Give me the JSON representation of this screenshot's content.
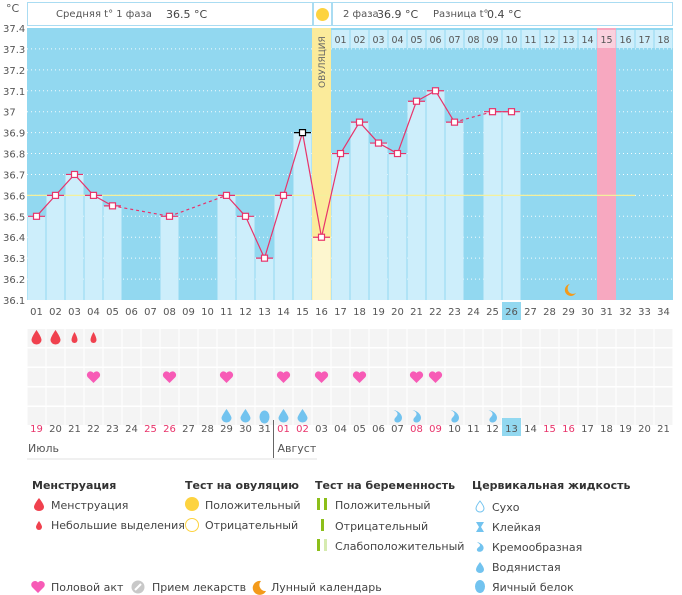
{
  "header": {
    "unit": "°C",
    "phase1_label": "Средняя t° 1 фаза",
    "phase1_value": "36.5 °C",
    "phase2_label": "2 фаза",
    "phase2_value": "36.9 °C",
    "diff_label": "Разница t°",
    "diff_value": "0.4 °C",
    "ovulation_label": "ОВУЛЯЦИЯ"
  },
  "chart_data": {
    "type": "line",
    "title": "",
    "ylabel": "°C",
    "ylim": [
      36.1,
      37.4
    ],
    "yticks": [
      "37.4",
      "37.3",
      "37.2",
      "37.1",
      "37",
      "36.9",
      "36.8",
      "36.7",
      "36.6",
      "36.5",
      "36.4",
      "36.3",
      "36.2",
      "36.1"
    ],
    "coverline": 36.6,
    "cycle_days": [
      "01",
      "02",
      "03",
      "04",
      "05",
      "06",
      "07",
      "08",
      "09",
      "10",
      "11",
      "12",
      "13",
      "14",
      "15",
      "16",
      "17",
      "18",
      "19",
      "20",
      "21",
      "22",
      "23",
      "24",
      "25",
      "26",
      "27",
      "28",
      "29",
      "30",
      "31",
      "32",
      "33",
      "34"
    ],
    "series": [
      {
        "name": "BBT",
        "values": [
          36.5,
          36.6,
          36.7,
          36.6,
          36.55,
          null,
          null,
          36.5,
          null,
          null,
          36.6,
          36.5,
          36.3,
          36.6,
          36.9,
          36.4,
          36.8,
          36.95,
          36.85,
          36.8,
          37.05,
          37.1,
          36.95,
          null,
          37.0,
          37.0,
          null,
          null,
          null,
          null,
          null,
          null,
          null,
          null
        ]
      }
    ],
    "highlighted_point_day": 15,
    "ovulation_day": 16,
    "current_day": 26,
    "next_period_day": 31,
    "moon_day": 29,
    "luteal_days": [
      "01",
      "02",
      "03",
      "04",
      "05",
      "06",
      "07",
      "08",
      "09",
      "10",
      "11",
      "12",
      "13",
      "14",
      "15",
      "16",
      "17",
      "18"
    ],
    "luteal_highlight": "15"
  },
  "calendar_dates": [
    "19",
    "20",
    "21",
    "22",
    "23",
    "24",
    "25",
    "26",
    "27",
    "28",
    "29",
    "30",
    "31",
    "01",
    "02",
    "03",
    "04",
    "05",
    "06",
    "07",
    "08",
    "09",
    "10",
    "11",
    "12",
    "13",
    "14",
    "15",
    "16",
    "17",
    "18",
    "19",
    "20",
    "21"
  ],
  "weekend_indices": [
    0,
    6,
    7,
    13,
    14,
    20,
    21,
    27,
    28
  ],
  "today_index": 25,
  "months": {
    "first": "Июль",
    "second": "Август"
  },
  "rows": {
    "menstruation": {
      "big": [
        0,
        1
      ],
      "small": [
        2,
        3
      ]
    },
    "intercourse": [
      3,
      7,
      10,
      13,
      15,
      17,
      20,
      21
    ],
    "fluid": [
      {
        "i": 10,
        "type": "watery"
      },
      {
        "i": 11,
        "type": "watery"
      },
      {
        "i": 12,
        "type": "eggwhite"
      },
      {
        "i": 13,
        "type": "watery"
      },
      {
        "i": 14,
        "type": "watery"
      },
      {
        "i": 19,
        "type": "creamy"
      },
      {
        "i": 20,
        "type": "creamy"
      },
      {
        "i": 22,
        "type": "creamy"
      },
      {
        "i": 24,
        "type": "creamy"
      }
    ]
  },
  "legend": {
    "menstruation": {
      "title": "Менструация",
      "items": [
        "Менструация",
        "Небольшие выделения"
      ]
    },
    "ovulation_test": {
      "title": "Тест на овуляцию",
      "items": [
        "Положительный",
        "Отрицательный"
      ]
    },
    "pregnancy_test": {
      "title": "Тест на беременность",
      "items": [
        "Положительный",
        "Отрицательный",
        "Слабоположительный"
      ]
    },
    "cervical": {
      "title": "Цервикальная жидкость",
      "items": [
        "Сухо",
        "Клейкая",
        "Кремообразная",
        "Водянистая",
        "Яичный белок"
      ]
    },
    "bottom": [
      "Половой акт",
      "Прием лекарств",
      "Лунный календарь"
    ]
  },
  "colors": {
    "plot_bg": "#92d8f0",
    "bar": "#cdeefb",
    "line": "#e8336a",
    "ovulation": "#fbeb9b",
    "period": "#f7a8c0",
    "coverline": "#f4f09c",
    "heart": "#f75bb6",
    "blood": "#f0414e",
    "fluid": "#72c3ef",
    "moon": "#f39a1a"
  }
}
